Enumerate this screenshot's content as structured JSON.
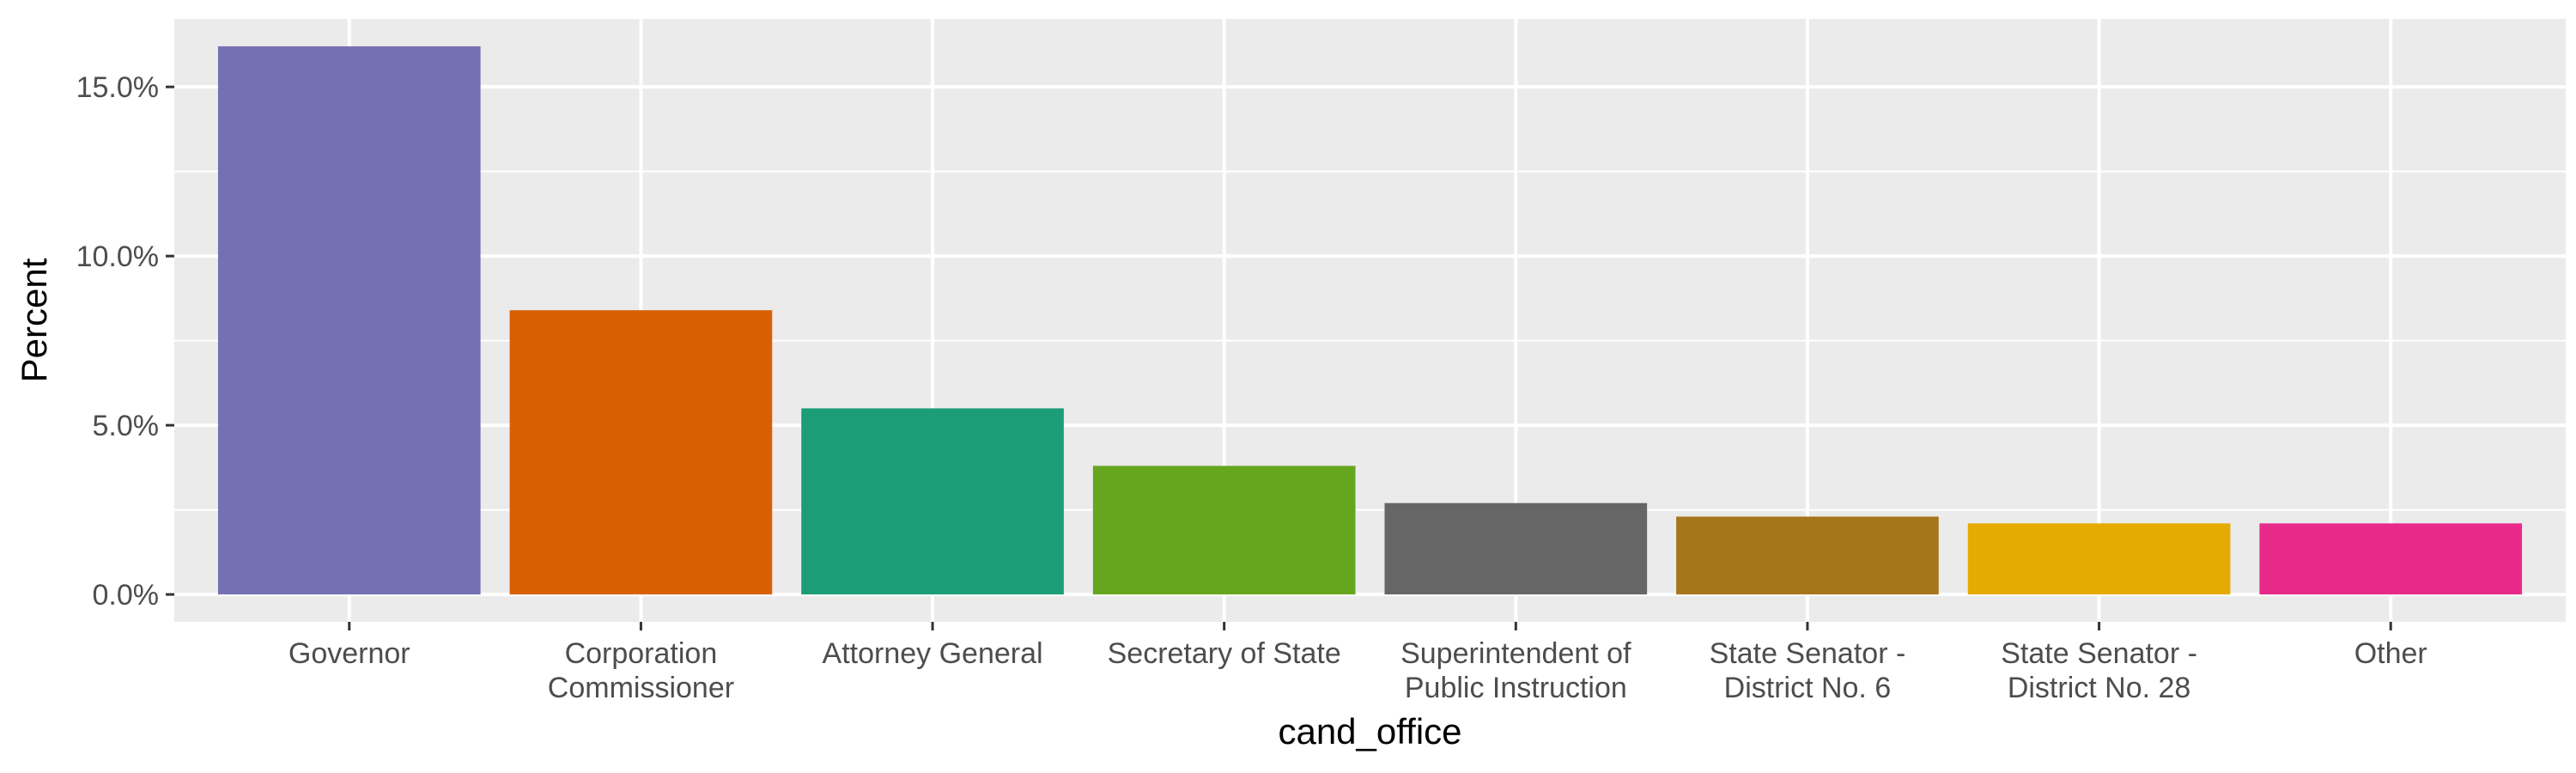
{
  "chart_data": {
    "type": "bar",
    "title": "",
    "xlabel": "cand_office",
    "ylabel": "Percent",
    "categories": [
      [
        "Governor"
      ],
      [
        "Corporation",
        "Commissioner"
      ],
      [
        "Attorney General"
      ],
      [
        "Secretary of State"
      ],
      [
        "Superintendent of",
        "Public Instruction"
      ],
      [
        "State Senator -",
        "District No. 6"
      ],
      [
        "State Senator -",
        "District No. 28"
      ],
      [
        "Other"
      ]
    ],
    "values": [
      16.2,
      8.4,
      5.5,
      3.8,
      2.7,
      2.3,
      2.1,
      2.1
    ],
    "colors": [
      "#7570B3",
      "#D95F02",
      "#1B9E77",
      "#66A61E",
      "#666666",
      "#A6761D",
      "#E6AB02",
      "#E7298A"
    ],
    "y_ticks": [
      0,
      5,
      10,
      15
    ],
    "y_tick_labels": [
      "0.0%",
      "5.0%",
      "10.0%",
      "15.0%"
    ],
    "ylim": [
      -0.81,
      17.01
    ],
    "grid": true,
    "legend": "none",
    "panel_background": "#EBEBEB",
    "grid_color": "#FFFFFF"
  }
}
